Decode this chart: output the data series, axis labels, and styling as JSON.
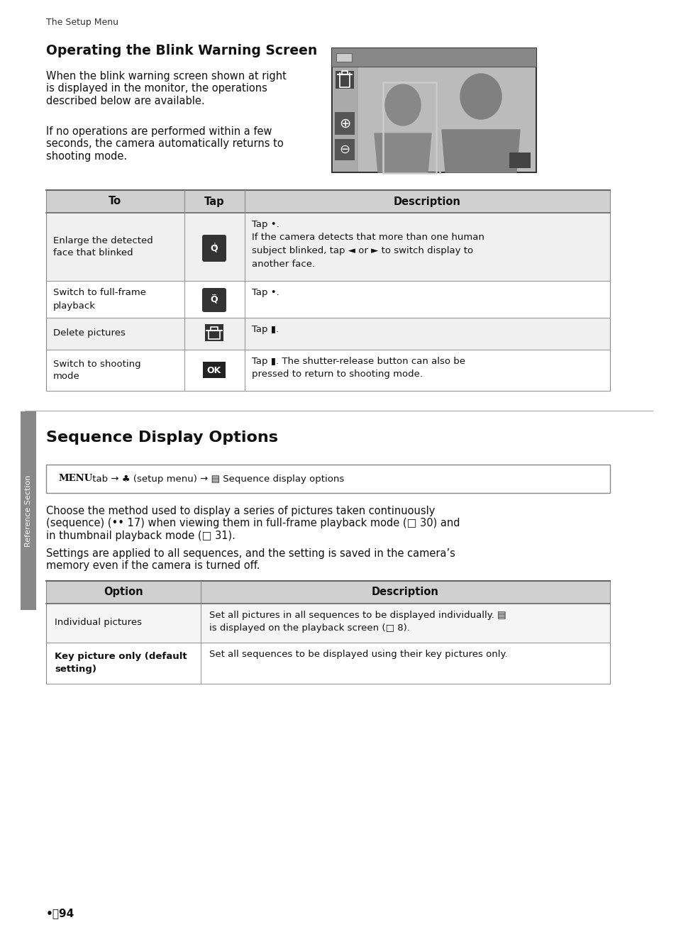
{
  "bg_color": "#ffffff",
  "header_text": "The Setup Menu",
  "section1_title": "Operating the Blink Warning Screen",
  "section1_para1": "When the blink warning screen shown at right\nis displayed in the monitor, the operations\ndescribed below are available.",
  "section1_para2": "If no operations are performed within a few\nseconds, the camera automatically returns to\nshooting mode.",
  "section2_title": "Sequence Display Options",
  "menu_box_text": "MENU tab → ♣ (setup menu) → ▤ Sequence display options",
  "section2_para1": "Choose the method used to display a series of pictures taken continuously\n(sequence) (•• 17) when viewing them in full-frame playback mode (□ 30) and\nin thumbnail playback mode (□ 31).",
  "section2_para2": "Settings are applied to all sequences, and the setting is saved in the camera’s\nmemory even if the camera is turned off.",
  "footer_text": "•⥉94",
  "side_label": "Reference Section"
}
